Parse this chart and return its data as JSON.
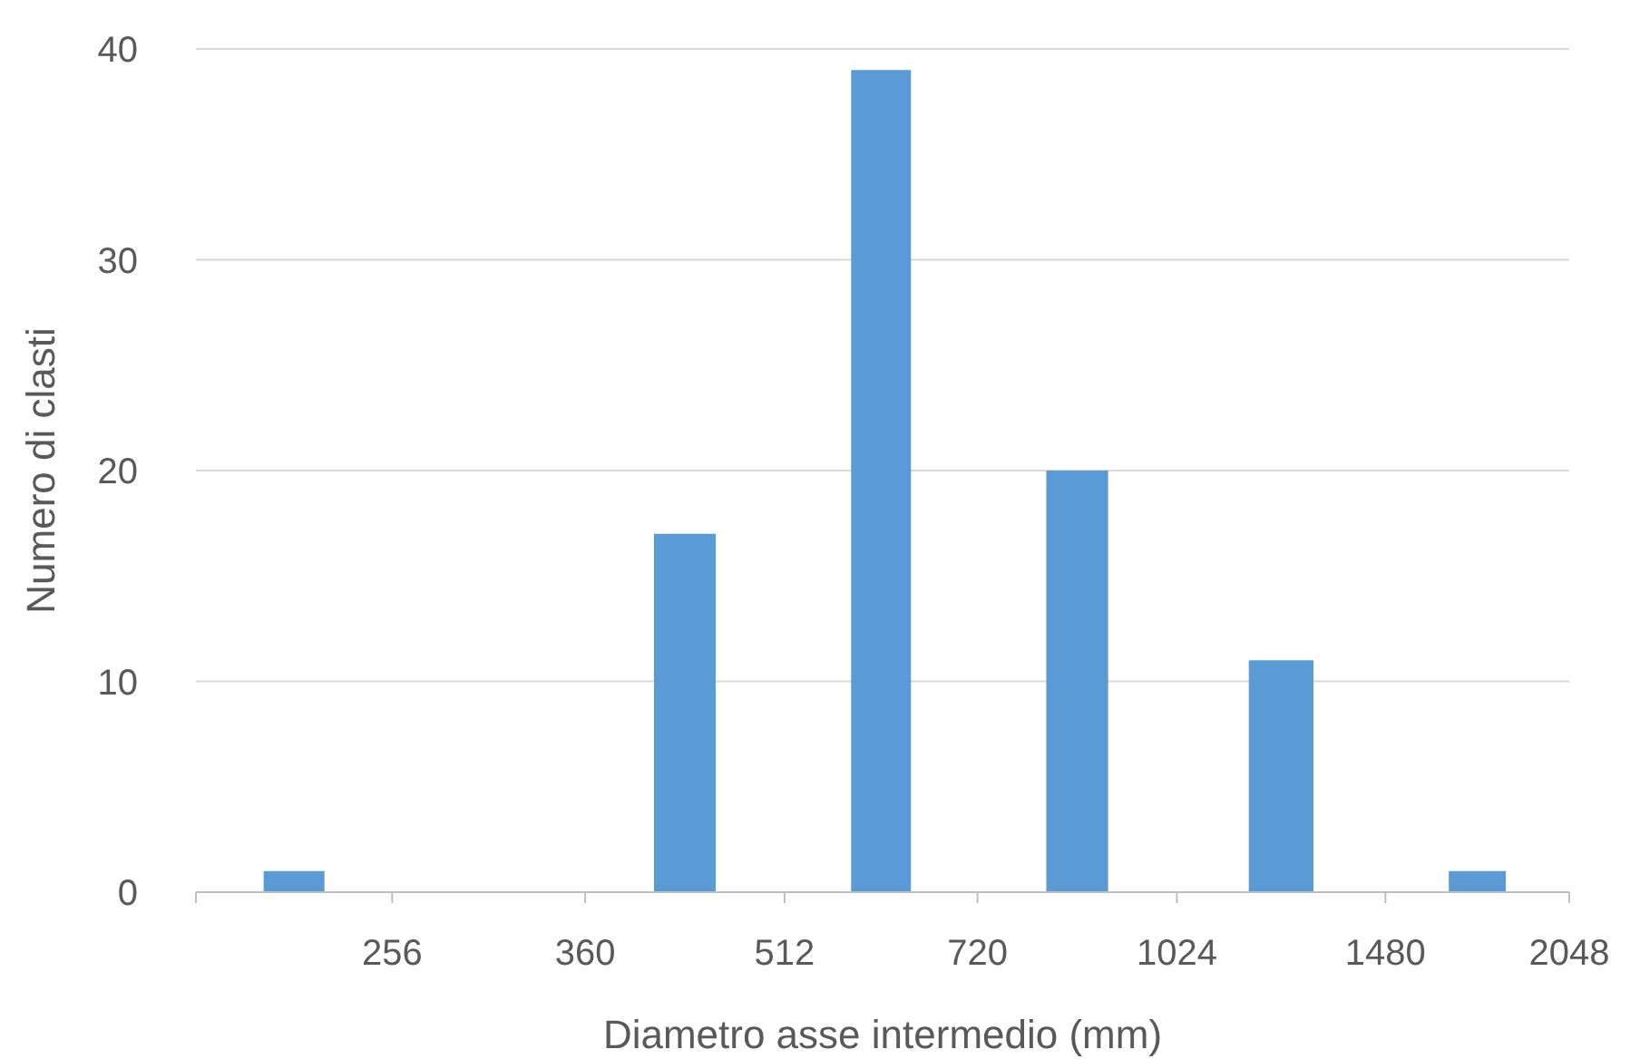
{
  "chart_data": {
    "type": "histogram",
    "xlabel": "Diametro asse intermedio (mm)",
    "ylabel": "Numero di clasti",
    "bins": [
      181,
      256,
      360,
      512,
      720,
      1024,
      1480,
      2048
    ],
    "values": [
      1,
      0,
      17,
      39,
      20,
      11,
      1
    ],
    "color": "#5b9bd5",
    "log": "x",
    "xlim": [
      181,
      2048
    ],
    "xticks": [
      {
        "value": 181,
        "label": null
      },
      256,
      360,
      512,
      720,
      1024,
      1480,
      2048
    ],
    "ylim": [
      0,
      40
    ],
    "yticks": [
      0,
      10,
      20,
      30,
      40
    ],
    "grid": "y"
  }
}
